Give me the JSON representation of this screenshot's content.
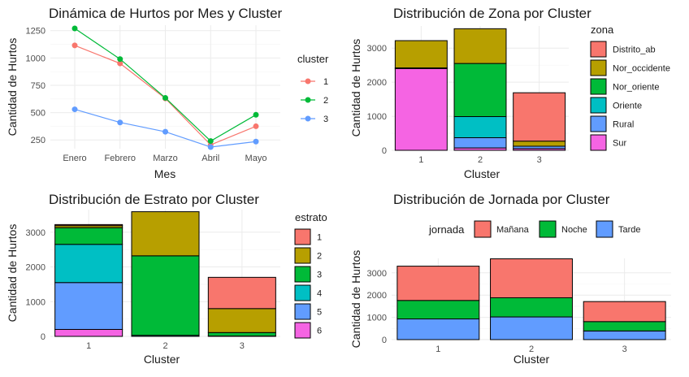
{
  "chart_data": [
    {
      "type": "line",
      "title": "Dinámica de Hurtos por Mes y Cluster",
      "xlabel": "Mes",
      "ylabel": "Cantidad de Hurtos",
      "categories": [
        "Enero",
        "Febrero",
        "Marzo",
        "Abril",
        "Mayo"
      ],
      "ylim": [
        170,
        1300
      ],
      "yticks": [
        250,
        500,
        750,
        1000,
        1250
      ],
      "legend_title": "cluster",
      "legend_position": "right",
      "series": [
        {
          "name": "1",
          "color": "#F8766D",
          "values": [
            1115,
            950,
            630,
            205,
            375
          ]
        },
        {
          "name": "2",
          "color": "#00BA38",
          "values": [
            1270,
            990,
            635,
            240,
            480
          ]
        },
        {
          "name": "3",
          "color": "#619CFF",
          "values": [
            530,
            410,
            325,
            185,
            235
          ]
        }
      ]
    },
    {
      "type": "bar",
      "stacked": true,
      "title": "Distribución de Zona por Cluster",
      "xlabel": "Cluster",
      "ylabel": "Cantidad de Hurtos",
      "categories": [
        "1",
        "2",
        "3"
      ],
      "ylim": [
        0,
        3650
      ],
      "yticks": [
        0,
        1000,
        2000,
        3000
      ],
      "legend_title": "zona",
      "legend_position": "right",
      "series": [
        {
          "name": "Distrito_ab",
          "color": "#F8766D",
          "values": [
            0,
            0,
            1420
          ]
        },
        {
          "name": "Nor_occidente",
          "color": "#B79F00",
          "values": [
            800,
            1020,
            150
          ]
        },
        {
          "name": "Nor_oriente",
          "color": "#00BA38",
          "values": [
            0,
            1560,
            0
          ]
        },
        {
          "name": "Oriente",
          "color": "#00BFC4",
          "values": [
            0,
            620,
            0
          ]
        },
        {
          "name": "Rural",
          "color": "#619CFF",
          "values": [
            20,
            300,
            70
          ]
        },
        {
          "name": "Sur",
          "color": "#F564E3",
          "values": [
            2400,
            70,
            50
          ]
        }
      ]
    },
    {
      "type": "bar",
      "stacked": true,
      "title": "Distribución de Estrato por Cluster",
      "xlabel": "Cluster",
      "ylabel": "Cantidad de Hurtos",
      "categories": [
        "1",
        "2",
        "3"
      ],
      "ylim": [
        0,
        3650
      ],
      "yticks": [
        0,
        1000,
        2000,
        3000
      ],
      "legend_title": "estrato",
      "legend_position": "right",
      "series": [
        {
          "name": "1",
          "color": "#F8766D",
          "values": [
            30,
            0,
            900
          ]
        },
        {
          "name": "2",
          "color": "#B79F00",
          "values": [
            60,
            1270,
            690
          ]
        },
        {
          "name": "3",
          "color": "#00BA38",
          "values": [
            480,
            2290,
            100
          ]
        },
        {
          "name": "4",
          "color": "#00BFC4",
          "values": [
            1100,
            30,
            0
          ]
        },
        {
          "name": "5",
          "color": "#619CFF",
          "values": [
            1350,
            0,
            10
          ]
        },
        {
          "name": "6",
          "color": "#F564E3",
          "values": [
            200,
            0,
            0
          ]
        }
      ]
    },
    {
      "type": "bar",
      "stacked": true,
      "title": "Distribución de Jornada por Cluster",
      "xlabel": "Cluster",
      "ylabel": "Cantidad de Hurtos",
      "categories": [
        "1",
        "2",
        "3"
      ],
      "ylim": [
        0,
        3650
      ],
      "yticks": [
        0,
        1000,
        2000,
        3000
      ],
      "legend_title": "jornada",
      "legend_position": "top",
      "series": [
        {
          "name": "Mañana",
          "color": "#F8766D",
          "values": [
            1540,
            1750,
            900
          ]
        },
        {
          "name": "Noche",
          "color": "#00BA38",
          "values": [
            830,
            860,
            420
          ]
        },
        {
          "name": "Tarde",
          "color": "#619CFF",
          "values": [
            930,
            1020,
            390
          ]
        }
      ]
    }
  ]
}
